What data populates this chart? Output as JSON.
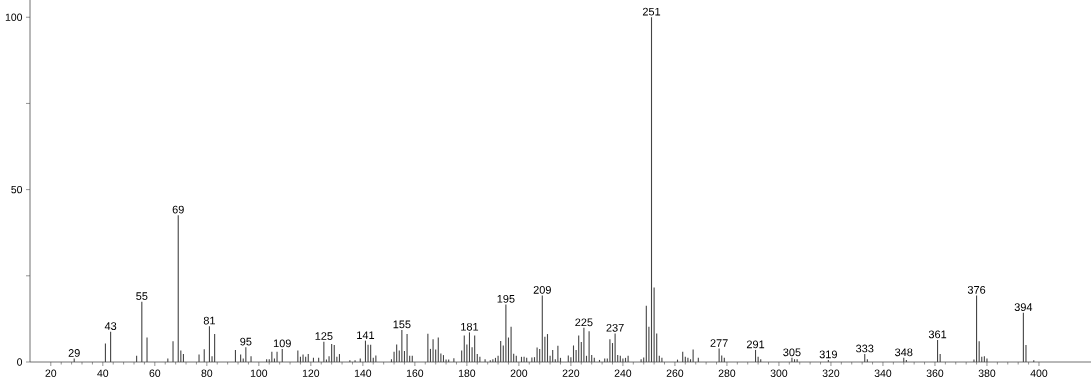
{
  "chart_data": {
    "type": "bar",
    "color": "#444444",
    "x": [
      29,
      41,
      43,
      53,
      55,
      57,
      65,
      67,
      69,
      70,
      71,
      77,
      79,
      81,
      82,
      83,
      91,
      93,
      94,
      95,
      97,
      103,
      104,
      105,
      106,
      107,
      109,
      115,
      116,
      117,
      118,
      119,
      121,
      123,
      125,
      126,
      127,
      128,
      129,
      130,
      131,
      135,
      137,
      139,
      141,
      142,
      143,
      144,
      145,
      151,
      152,
      153,
      154,
      155,
      156,
      157,
      158,
      159,
      165,
      166,
      167,
      168,
      169,
      170,
      171,
      172,
      173,
      175,
      178,
      179,
      180,
      181,
      182,
      183,
      184,
      185,
      187,
      189,
      190,
      191,
      192,
      193,
      194,
      195,
      196,
      197,
      198,
      199,
      201,
      202,
      203,
      205,
      206,
      207,
      208,
      209,
      210,
      211,
      212,
      213,
      214,
      215,
      216,
      219,
      220,
      221,
      222,
      223,
      224,
      225,
      226,
      227,
      228,
      229,
      231,
      233,
      234,
      235,
      236,
      237,
      238,
      239,
      240,
      241,
      242,
      247,
      248,
      249,
      250,
      251,
      252,
      253,
      254,
      255,
      261,
      263,
      264,
      265,
      266,
      267,
      269,
      277,
      278,
      279,
      291,
      292,
      293,
      305,
      306,
      307,
      319,
      333,
      334,
      348,
      349,
      361,
      362,
      375,
      376,
      377,
      378,
      379,
      380,
      394,
      395,
      398
    ],
    "values": [
      1,
      5.4,
      8.8,
      1.8,
      17.5,
      7.1,
      1,
      6,
      42.6,
      3.3,
      2.3,
      2.2,
      3.7,
      10.4,
      1.7,
      8.1,
      3.5,
      2.2,
      1,
      4.3,
      1.7,
      0.8,
      0.8,
      3,
      1,
      3,
      3.8,
      3.3,
      1.5,
      2.2,
      1.5,
      2.3,
      1.2,
      1.2,
      5.9,
      0.7,
      1.7,
      5.2,
      4.9,
      1.5,
      2.3,
      0.5,
      0.5,
      1,
      6.2,
      5,
      5,
      1.2,
      1.9,
      0.8,
      3,
      5.1,
      3.3,
      9.3,
      3.2,
      8.1,
      1.8,
      1.8,
      8.2,
      3.8,
      6.6,
      3.6,
      7.1,
      2.5,
      2,
      0.7,
      0.7,
      1.1,
      3.3,
      7.7,
      5.1,
      8.6,
      4.3,
      7.7,
      2.3,
      1.5,
      0.8,
      0.5,
      0.8,
      1.2,
      1.8,
      6.1,
      4.8,
      16.7,
      7.1,
      10.2,
      2.4,
      1.8,
      1.5,
      1.5,
      1.2,
      1.3,
      1.4,
      4.2,
      3.8,
      19.3,
      7.3,
      8.1,
      1.8,
      3.5,
      0.8,
      4.7,
      1.2,
      1.9,
      1.4,
      4.8,
      3.5,
      7.7,
      5.8,
      9.9,
      1.8,
      8.9,
      2,
      1.2,
      0.6,
      1,
      1,
      6.6,
      5.5,
      8.3,
      2,
      1.8,
      1,
      1.2,
      1.8,
      0.8,
      1.3,
      16.3,
      10.2,
      100,
      21.6,
      8.3,
      1.8,
      1.2,
      0.7,
      3,
      1.5,
      1.2,
      0.8,
      3.6,
      1.2,
      3.9,
      1.9,
      1.2,
      3.5,
      1.5,
      0.8,
      1.2,
      0.8,
      0.8,
      0.6,
      2.3,
      0.8,
      1.2,
      0.6,
      6.4,
      2.3,
      0.7,
      19.3,
      6,
      1.5,
      1.7,
      1,
      14.3,
      4.9,
      0.5
    ],
    "xlim": [
      12,
      420
    ],
    "ylim": [
      0,
      105
    ],
    "xticks": [
      20,
      40,
      60,
      80,
      100,
      120,
      140,
      160,
      180,
      200,
      220,
      240,
      260,
      280,
      300,
      320,
      340,
      360,
      380,
      400
    ],
    "yticks": [
      0,
      {
        "value": 25,
        "label": null
      },
      50,
      {
        "value": 75,
        "label": null
      },
      100
    ],
    "annotations": [
      {
        "text": "29",
        "x": 29,
        "y": 1
      },
      {
        "text": "43",
        "x": 43,
        "y": 8.8
      },
      {
        "text": "55",
        "x": 55,
        "y": 17.5
      },
      {
        "text": "69",
        "x": 69,
        "y": 42.6
      },
      {
        "text": "81",
        "x": 81,
        "y": 10.4
      },
      {
        "text": "95",
        "x": 95,
        "y": 4.3
      },
      {
        "text": "109",
        "x": 109,
        "y": 3.8
      },
      {
        "text": "125",
        "x": 125,
        "y": 5.9
      },
      {
        "text": "141",
        "x": 141,
        "y": 6.2
      },
      {
        "text": "155",
        "x": 155,
        "y": 9.3
      },
      {
        "text": "181",
        "x": 181,
        "y": 8.6
      },
      {
        "text": "195",
        "x": 195,
        "y": 16.7
      },
      {
        "text": "209",
        "x": 209,
        "y": 19.3
      },
      {
        "text": "225",
        "x": 225,
        "y": 9.9
      },
      {
        "text": "237",
        "x": 237,
        "y": 8.3
      },
      {
        "text": "251",
        "x": 251,
        "y": 100
      },
      {
        "text": "277",
        "x": 277,
        "y": 3.9
      },
      {
        "text": "291",
        "x": 291,
        "y": 3.5
      },
      {
        "text": "305",
        "x": 305,
        "y": 1.2
      },
      {
        "text": "319",
        "x": 319,
        "y": 0.6
      },
      {
        "text": "333",
        "x": 333,
        "y": 2.3
      },
      {
        "text": "348",
        "x": 348,
        "y": 1.2
      },
      {
        "text": "361",
        "x": 361,
        "y": 6.4
      },
      {
        "text": "376",
        "x": 376,
        "y": 19.3
      },
      {
        "text": "394",
        "x": 394,
        "y": 14.3
      }
    ]
  }
}
